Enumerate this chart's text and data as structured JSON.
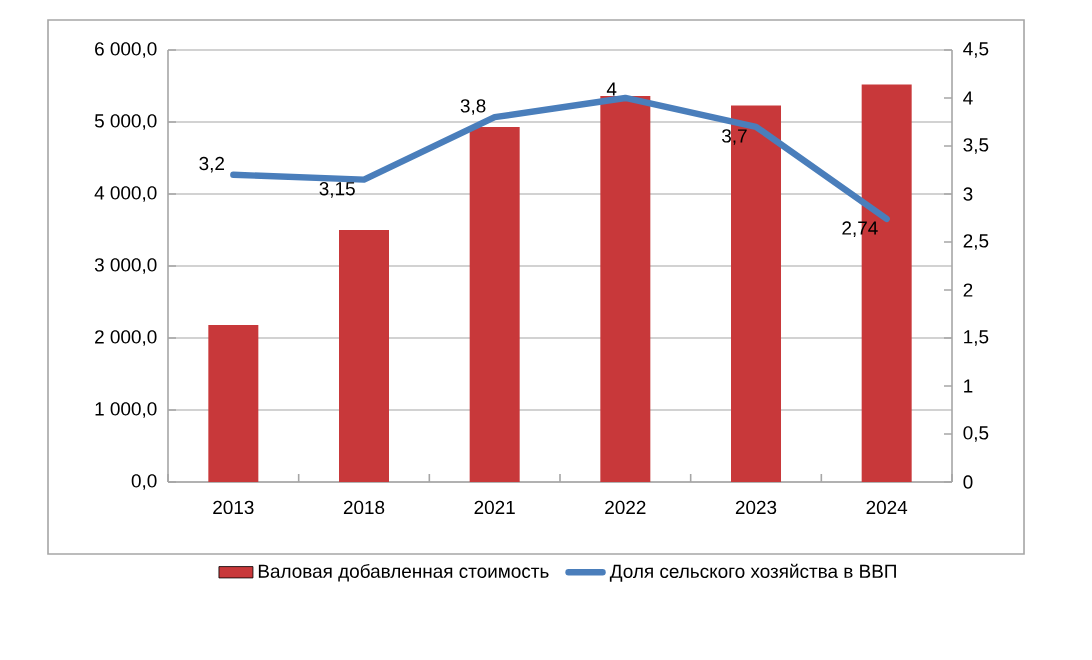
{
  "chart_data": {
    "type": "bar",
    "categories": [
      "2013",
      "2018",
      "2021",
      "2022",
      "2023",
      "2024"
    ],
    "series": [
      {
        "name": "Валовая добавленная стоимость",
        "color": "#c8383a",
        "values": [
          2180,
          3500,
          4930,
          5360,
          5230,
          5520
        ]
      },
      {
        "name": "Доля сельского хозяйства в ВВП",
        "type": "line",
        "axis": "y2",
        "color": "#4a7ebb",
        "values": [
          3.2,
          3.15,
          3.8,
          4,
          3.7,
          2.74
        ],
        "value_labels": [
          "3,2",
          "3,15",
          "3,8",
          "4",
          "3,7",
          "2,74"
        ]
      }
    ],
    "ylim": [
      0,
      6000
    ],
    "yticks": [
      {
        "value": 0,
        "label": "0,0"
      },
      {
        "value": 1000,
        "label": "1 000,0"
      },
      {
        "value": 2000,
        "label": "2 000,0"
      },
      {
        "value": 3000,
        "label": "3 000,0"
      },
      {
        "value": 4000,
        "label": "4 000,0"
      },
      {
        "value": 5000,
        "label": "5 000,0"
      },
      {
        "value": 6000,
        "label": "6 000,0"
      }
    ],
    "y2lim": [
      0,
      4.5
    ],
    "y2ticks": [
      0,
      {
        "value": 0.5,
        "label": "0,5"
      },
      1,
      {
        "value": 1.5,
        "label": "1,5"
      },
      2,
      {
        "value": 2.5,
        "label": "2,5"
      },
      3,
      {
        "value": 3.5,
        "label": "3,5"
      },
      4,
      {
        "value": 4.5,
        "label": "4,5"
      }
    ],
    "grid": "y",
    "legend": "bottom"
  }
}
